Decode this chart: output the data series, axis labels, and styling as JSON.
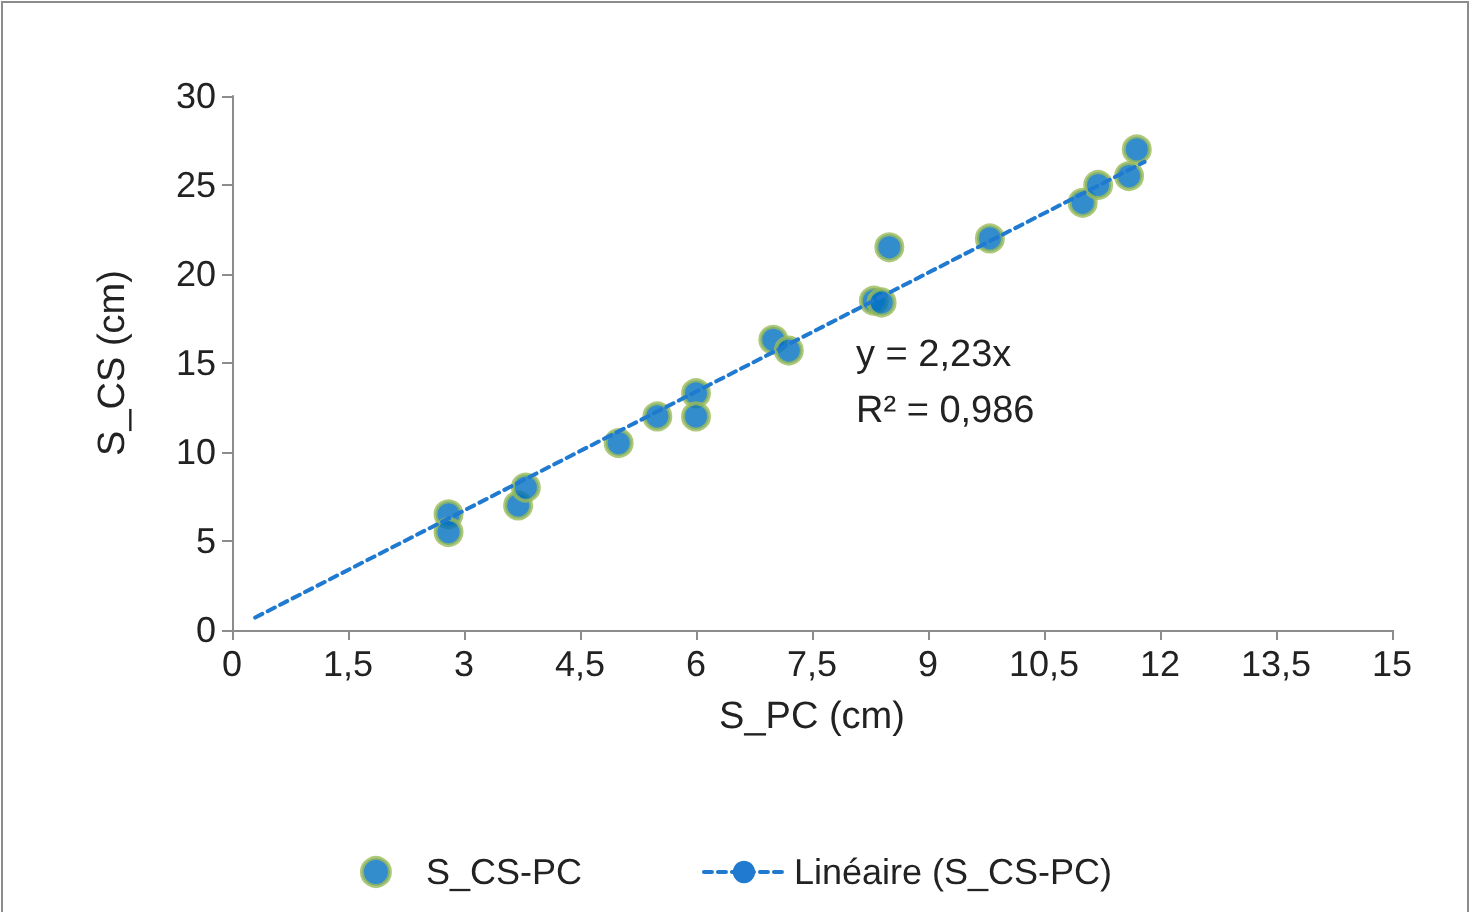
{
  "chart_data": {
    "type": "scatter",
    "xlabel": "S_PC (cm)",
    "ylabel": "S_CS (cm)",
    "xlim": [
      0,
      15
    ],
    "xticks": [
      {
        "value": 0,
        "label": "0"
      },
      {
        "value": 1.5,
        "label": "1,5"
      },
      {
        "value": 3,
        "label": "3"
      },
      {
        "value": 4.5,
        "label": "4,5"
      },
      {
        "value": 6,
        "label": "6"
      },
      {
        "value": 7.5,
        "label": "7,5"
      },
      {
        "value": 9,
        "label": "9"
      },
      {
        "value": 10.5,
        "label": "10,5"
      },
      {
        "value": 12,
        "label": "12"
      },
      {
        "value": 13.5,
        "label": "13,5"
      },
      {
        "value": 15,
        "label": "15"
      }
    ],
    "ylim": [
      0,
      30
    ],
    "yticks": [
      0,
      5,
      10,
      15,
      20,
      25,
      30
    ],
    "grid": false,
    "legend": "bottom",
    "marker": "circle",
    "series": [
      {
        "name": "S_CS-PC",
        "type": "scatter",
        "color": "#0070c0",
        "x": [
          2.8,
          2.8,
          3.7,
          3.8,
          5.0,
          5.5,
          6.0,
          6.0,
          7.0,
          7.2,
          8.3,
          8.4,
          8.5,
          9.8,
          11.0,
          11.2,
          11.6,
          11.7
        ],
        "values": [
          6.5,
          5.5,
          7,
          8,
          10.5,
          12,
          13.3,
          12,
          16.3,
          15.7,
          18.5,
          18.4,
          21.5,
          22,
          24,
          25,
          25.5,
          27
        ]
      },
      {
        "name": "Linéaire (S_CS-PC)",
        "type": "line",
        "color": "#1f7ad0",
        "line_style": "dashed",
        "marker": "none",
        "x": [
          0.3,
          11.8
        ],
        "values": [
          0.7,
          26.3
        ]
      }
    ],
    "annotations": [
      "y = 2,23x",
      "R² = 0,986"
    ]
  }
}
